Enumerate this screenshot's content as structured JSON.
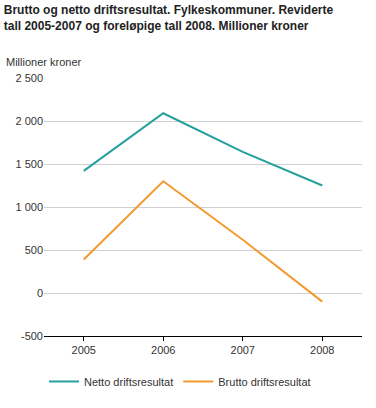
{
  "chart_data": {
    "type": "line",
    "title": "Brutto og netto driftsresultat. Fylkeskommuner. Reviderte tall 2005-2007 og foreløpige tall 2008. Millioner kroner",
    "y_label": "Millioner kroner",
    "categories": [
      "2005",
      "2006",
      "2007",
      "2008"
    ],
    "series": [
      {
        "name": "Netto driftsresultat",
        "color": "#24a09d",
        "values": [
          1420,
          2090,
          1640,
          1250
        ]
      },
      {
        "name": "Brutto driftsresultat",
        "color": "#f39a2e",
        "values": [
          390,
          1300,
          620,
          -100
        ]
      }
    ],
    "ylim": [
      -500,
      2500
    ],
    "yticks": [
      -500,
      0,
      500,
      {
        "value": 1000,
        "label": "1 000"
      },
      {
        "value": 1500,
        "label": "1 500"
      },
      {
        "value": 2000,
        "label": "2 000"
      },
      {
        "value": 2500,
        "label": "2 500"
      }
    ],
    "grid": true,
    "legend": "bottom"
  }
}
